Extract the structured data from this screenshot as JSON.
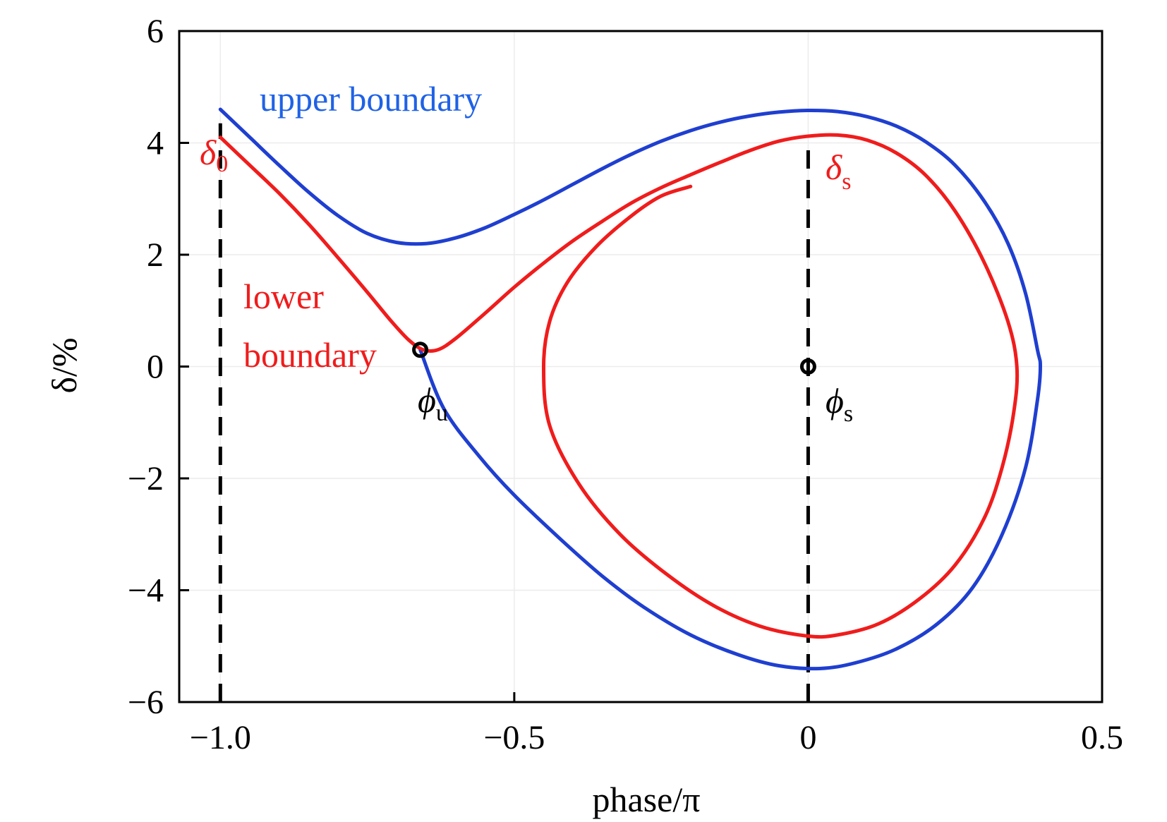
{
  "chart_data": {
    "type": "line",
    "title": "",
    "xlabel": "phase/π",
    "ylabel": "δ/%",
    "xlim": [
      -1.07,
      0.5
    ],
    "ylim": [
      -6,
      6
    ],
    "x_ticks": [
      -1.0,
      -0.5,
      0,
      0.5
    ],
    "x_tick_labels": [
      "−1.0",
      "−0.5",
      "0",
      "0.5"
    ],
    "y_ticks": [
      -6,
      -4,
      -2,
      0,
      2,
      4,
      6
    ],
    "y_tick_labels": [
      "−6",
      "−4",
      "−2",
      "0",
      "2",
      "4",
      "6"
    ],
    "grid": true,
    "legend": "none",
    "colors": {
      "upper": "#1f3fd0",
      "lower": "#f01c1c",
      "marker": "#000000",
      "guide": "#000000"
    },
    "series": [
      {
        "key": "upper",
        "points": [
          [
            -1.0,
            4.6
          ],
          [
            -0.95,
            4.1
          ],
          [
            -0.9,
            3.6
          ],
          [
            -0.85,
            3.12
          ],
          [
            -0.8,
            2.7
          ],
          [
            -0.75,
            2.38
          ],
          [
            -0.7,
            2.22
          ],
          [
            -0.65,
            2.2
          ],
          [
            -0.6,
            2.3
          ],
          [
            -0.55,
            2.48
          ],
          [
            -0.5,
            2.72
          ],
          [
            -0.45,
            2.98
          ],
          [
            -0.4,
            3.26
          ],
          [
            -0.35,
            3.54
          ],
          [
            -0.3,
            3.8
          ],
          [
            -0.25,
            4.03
          ],
          [
            -0.2,
            4.22
          ],
          [
            -0.15,
            4.37
          ],
          [
            -0.1,
            4.48
          ],
          [
            -0.05,
            4.55
          ],
          [
            0.0,
            4.58
          ],
          [
            0.05,
            4.56
          ],
          [
            0.1,
            4.47
          ],
          [
            0.15,
            4.3
          ],
          [
            0.2,
            4.02
          ],
          [
            0.25,
            3.6
          ],
          [
            0.3,
            2.95
          ],
          [
            0.34,
            2.2
          ],
          [
            0.37,
            1.3
          ],
          [
            0.39,
            0.3
          ],
          [
            0.395,
            0.0
          ],
          [
            0.39,
            -0.6
          ],
          [
            0.37,
            -1.8
          ],
          [
            0.33,
            -3.0
          ],
          [
            0.28,
            -3.95
          ],
          [
            0.22,
            -4.6
          ],
          [
            0.15,
            -5.05
          ],
          [
            0.08,
            -5.3
          ],
          [
            0.02,
            -5.4
          ],
          [
            -0.05,
            -5.35
          ],
          [
            -0.12,
            -5.15
          ],
          [
            -0.2,
            -4.8
          ],
          [
            -0.28,
            -4.3
          ],
          [
            -0.35,
            -3.75
          ],
          [
            -0.42,
            -3.1
          ],
          [
            -0.5,
            -2.3
          ],
          [
            -0.56,
            -1.6
          ],
          [
            -0.62,
            -0.75
          ],
          [
            -0.66,
            0.3
          ]
        ]
      },
      {
        "key": "lower",
        "points": [
          [
            -1.0,
            4.1
          ],
          [
            -0.95,
            3.6
          ],
          [
            -0.9,
            3.1
          ],
          [
            -0.85,
            2.55
          ],
          [
            -0.8,
            1.95
          ],
          [
            -0.75,
            1.33
          ],
          [
            -0.71,
            0.82
          ],
          [
            -0.68,
            0.48
          ],
          [
            -0.655,
            0.3
          ],
          [
            -0.63,
            0.3
          ],
          [
            -0.6,
            0.5
          ],
          [
            -0.55,
            0.95
          ],
          [
            -0.5,
            1.42
          ],
          [
            -0.45,
            1.85
          ],
          [
            -0.4,
            2.25
          ],
          [
            -0.35,
            2.6
          ],
          [
            -0.3,
            2.93
          ],
          [
            -0.25,
            3.2
          ],
          [
            -0.2,
            3.43
          ],
          [
            -0.15,
            3.65
          ],
          [
            -0.1,
            3.86
          ],
          [
            -0.05,
            4.03
          ],
          [
            0.0,
            4.12
          ],
          [
            0.05,
            4.14
          ],
          [
            0.1,
            4.05
          ],
          [
            0.15,
            3.82
          ],
          [
            0.2,
            3.42
          ],
          [
            0.25,
            2.78
          ],
          [
            0.3,
            1.85
          ],
          [
            0.34,
            0.8
          ],
          [
            0.355,
            0.0
          ],
          [
            0.35,
            -0.8
          ],
          [
            0.33,
            -1.8
          ],
          [
            0.3,
            -2.7
          ],
          [
            0.25,
            -3.55
          ],
          [
            0.19,
            -4.15
          ],
          [
            0.12,
            -4.6
          ],
          [
            0.05,
            -4.8
          ],
          [
            0.0,
            -4.82
          ],
          [
            -0.08,
            -4.65
          ],
          [
            -0.16,
            -4.28
          ],
          [
            -0.24,
            -3.72
          ],
          [
            -0.32,
            -3.0
          ],
          [
            -0.39,
            -2.1
          ],
          [
            -0.44,
            -1.05
          ],
          [
            -0.45,
            0.0
          ],
          [
            -0.44,
            0.8
          ],
          [
            -0.41,
            1.5
          ],
          [
            -0.36,
            2.15
          ],
          [
            -0.3,
            2.7
          ],
          [
            -0.25,
            3.05
          ],
          [
            -0.2,
            3.22
          ]
        ]
      }
    ],
    "markers": [
      {
        "key": "phi_u",
        "x": -0.66,
        "y": 0.3
      },
      {
        "key": "phi_s",
        "x": 0.0,
        "y": 0.0
      }
    ],
    "guide_lines": [
      {
        "x": -1.0,
        "y_from": -6,
        "y_to": 4.35
      },
      {
        "x": 0.0,
        "y_from": -6,
        "y_to": 4.0
      }
    ],
    "annotations": {
      "upper_boundary": "upper boundary",
      "lower_boundary_line1": "lower",
      "lower_boundary_line2": "boundary",
      "delta0_main": "δ",
      "delta0_sub": "0",
      "deltas_main": "δ",
      "deltas_sub": "s",
      "phiu_main": "ϕ",
      "phiu_sub": "u",
      "phis_main": "ϕ",
      "phis_sub": "s"
    }
  }
}
